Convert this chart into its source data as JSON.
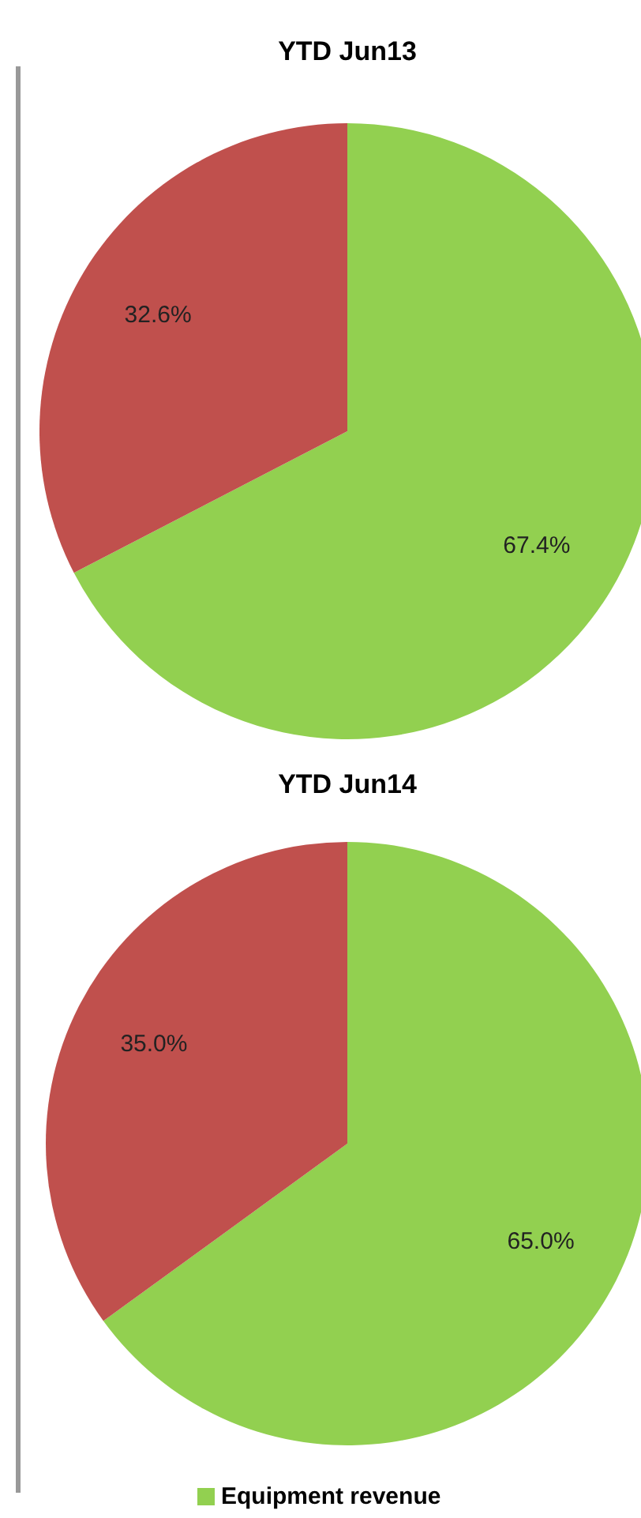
{
  "chart_data": [
    {
      "type": "pie",
      "title": "YTD Jun13",
      "categories": [
        null,
        null
      ],
      "values": [
        67.4,
        32.6
      ],
      "colors": [
        "#92d050",
        "#c0504d"
      ],
      "value_labels": [
        "67.4%",
        "32.6%"
      ],
      "legend": false
    },
    {
      "type": "pie",
      "title": "YTD Jun14",
      "categories": [
        "Equipment revenue",
        null
      ],
      "values": [
        65.0,
        35.0
      ],
      "colors": [
        "#92d050",
        "#c0504d"
      ],
      "value_labels": [
        "65.0%",
        "35.0%"
      ],
      "legend": "bottom"
    }
  ]
}
